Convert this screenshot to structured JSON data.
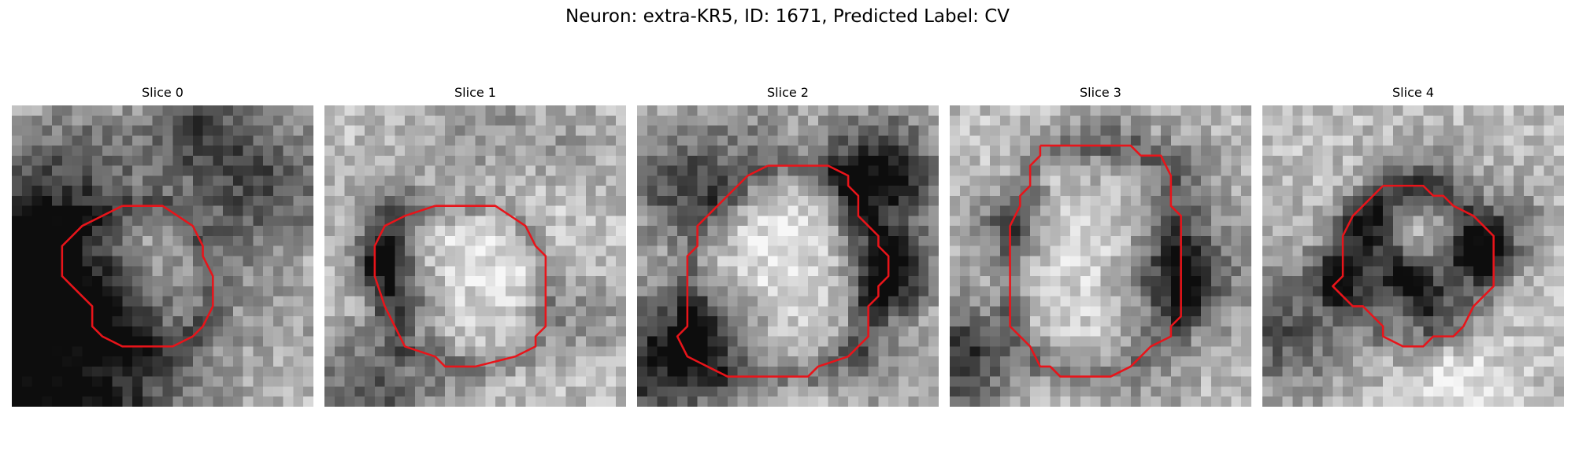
{
  "figure": {
    "title": "Neuron: extra-KR5, ID: 1671, Predicted Label: CV",
    "grid_size": 30,
    "contour_color": "#e8141a"
  },
  "slices": [
    {
      "label": "Slice 0",
      "darks": [
        [
          -1,
          15,
          5,
          0.8
        ],
        [
          3,
          30,
          10,
          0.8
        ],
        [
          7,
          7,
          5,
          0.35
        ],
        [
          24,
          8,
          6,
          0.45
        ],
        [
          18,
          2,
          3,
          0.3
        ],
        [
          10,
          19,
          4,
          0.25
        ],
        [
          27,
          20,
          3,
          0.15
        ]
      ],
      "brights": [
        [
          14,
          14,
          4,
          0.2
        ],
        [
          28,
          17,
          3,
          0.15
        ]
      ],
      "contour": [
        [
          11,
          10
        ],
        [
          15,
          10
        ],
        [
          18,
          12
        ],
        [
          19,
          14
        ],
        [
          19,
          15
        ],
        [
          20,
          17
        ],
        [
          20,
          20
        ],
        [
          19,
          22
        ],
        [
          18,
          23
        ],
        [
          16,
          24
        ],
        [
          11,
          24
        ],
        [
          9,
          23
        ],
        [
          8,
          22
        ],
        [
          8,
          20
        ],
        [
          6,
          18
        ],
        [
          5,
          17
        ],
        [
          5,
          14
        ],
        [
          6,
          13
        ],
        [
          7,
          12
        ],
        [
          9,
          11
        ],
        [
          11,
          10
        ]
      ]
    },
    {
      "label": "Slice 1",
      "darks": [
        [
          6,
          15,
          2,
          0.55
        ],
        [
          8,
          19,
          2,
          0.4
        ],
        [
          5,
          29,
          5,
          0.4
        ],
        [
          26,
          21,
          3,
          0.2
        ],
        [
          16,
          3,
          4,
          0.2
        ],
        [
          25,
          5,
          3,
          0.15
        ],
        [
          7,
          10,
          3,
          0.25
        ]
      ],
      "brights": [
        [
          16,
          14,
          6,
          0.15
        ]
      ],
      "contour": [
        [
          11,
          10
        ],
        [
          17,
          10
        ],
        [
          20,
          12
        ],
        [
          21,
          14
        ],
        [
          22,
          15
        ],
        [
          22,
          22
        ],
        [
          21,
          23
        ],
        [
          21,
          24
        ],
        [
          19,
          25
        ],
        [
          15,
          26
        ],
        [
          12,
          26
        ],
        [
          11,
          25
        ],
        [
          8,
          24
        ],
        [
          7,
          22
        ],
        [
          6,
          20
        ],
        [
          5,
          17
        ],
        [
          5,
          14
        ],
        [
          6,
          12
        ],
        [
          8,
          11
        ],
        [
          11,
          10
        ]
      ]
    },
    {
      "label": "Slice 2",
      "darks": [
        [
          24,
          7,
          4,
          0.75
        ],
        [
          25,
          17,
          3,
          0.7
        ],
        [
          2,
          26,
          5,
          0.6
        ],
        [
          5,
          8,
          4,
          0.5
        ],
        [
          8,
          22,
          3,
          0.35
        ],
        [
          12,
          3,
          4,
          0.2
        ],
        [
          23,
          26,
          3,
          0.25
        ]
      ],
      "brights": [
        [
          14,
          13,
          6,
          0.2
        ]
      ],
      "contour": [
        [
          13,
          6
        ],
        [
          19,
          6
        ],
        [
          21,
          7
        ],
        [
          21,
          8
        ],
        [
          22,
          9
        ],
        [
          22,
          11
        ],
        [
          23,
          12
        ],
        [
          24,
          13
        ],
        [
          24,
          14
        ],
        [
          25,
          15
        ],
        [
          25,
          17
        ],
        [
          24,
          18
        ],
        [
          24,
          19
        ],
        [
          23,
          20
        ],
        [
          23,
          23
        ],
        [
          22,
          24
        ],
        [
          21,
          25
        ],
        [
          18,
          26
        ],
        [
          17,
          27
        ],
        [
          9,
          27
        ],
        [
          7,
          26
        ],
        [
          5,
          25
        ],
        [
          4,
          23
        ],
        [
          5,
          22
        ],
        [
          5,
          15
        ],
        [
          6,
          14
        ],
        [
          6,
          12
        ],
        [
          8,
          10
        ],
        [
          9,
          9
        ],
        [
          10,
          8
        ],
        [
          11,
          7
        ],
        [
          13,
          6
        ]
      ]
    },
    {
      "label": "Slice 3",
      "darks": [
        [
          23,
          17,
          4,
          0.65
        ],
        [
          1,
          25,
          4,
          0.55
        ],
        [
          6,
          12,
          3,
          0.35
        ],
        [
          16,
          4,
          4,
          0.2
        ],
        [
          24,
          7,
          3,
          0.2
        ],
        [
          20,
          28,
          3,
          0.15
        ]
      ],
      "brights": [
        [
          14,
          14,
          7,
          0.15
        ]
      ],
      "contour": [
        [
          9,
          4
        ],
        [
          10,
          4
        ],
        [
          18,
          4
        ],
        [
          19,
          5
        ],
        [
          21,
          5
        ],
        [
          22,
          7
        ],
        [
          22,
          10
        ],
        [
          23,
          11
        ],
        [
          23,
          21
        ],
        [
          22,
          22
        ],
        [
          22,
          23
        ],
        [
          20,
          24
        ],
        [
          19,
          25
        ],
        [
          18,
          26
        ],
        [
          16,
          27
        ],
        [
          11,
          27
        ],
        [
          10,
          26
        ],
        [
          9,
          26
        ],
        [
          8,
          24
        ],
        [
          7,
          23
        ],
        [
          6,
          22
        ],
        [
          6,
          12
        ],
        [
          7,
          10
        ],
        [
          7,
          9
        ],
        [
          8,
          8
        ],
        [
          8,
          6
        ],
        [
          9,
          5
        ],
        [
          9,
          4
        ]
      ]
    },
    {
      "label": "Slice 4",
      "darks": [
        [
          11,
          12,
          2,
          0.6
        ],
        [
          14,
          17,
          2,
          0.7
        ],
        [
          21,
          15,
          2,
          0.7
        ],
        [
          8,
          17,
          2,
          0.5
        ],
        [
          17,
          20,
          2,
          0.5
        ],
        [
          2,
          22,
          5,
          0.4
        ],
        [
          24,
          12,
          3,
          0.3
        ],
        [
          16,
          8,
          3,
          0.35
        ]
      ],
      "brights": [
        [
          16,
          13,
          2,
          0.15
        ],
        [
          20,
          28,
          4,
          0.15
        ]
      ],
      "contour": [
        [
          12,
          8
        ],
        [
          16,
          8
        ],
        [
          17,
          9
        ],
        [
          18,
          9
        ],
        [
          19,
          10
        ],
        [
          21,
          11
        ],
        [
          22,
          12
        ],
        [
          23,
          13
        ],
        [
          23,
          18
        ],
        [
          22,
          19
        ],
        [
          21,
          20
        ],
        [
          20,
          22
        ],
        [
          19,
          23
        ],
        [
          17,
          23
        ],
        [
          16,
          24
        ],
        [
          14,
          24
        ],
        [
          12,
          23
        ],
        [
          12,
          22
        ],
        [
          11,
          21
        ],
        [
          10,
          20
        ],
        [
          9,
          20
        ],
        [
          8,
          19
        ],
        [
          7,
          18
        ],
        [
          8,
          17
        ],
        [
          8,
          13
        ],
        [
          9,
          11
        ],
        [
          10,
          10
        ],
        [
          11,
          9
        ],
        [
          12,
          8
        ]
      ]
    }
  ]
}
